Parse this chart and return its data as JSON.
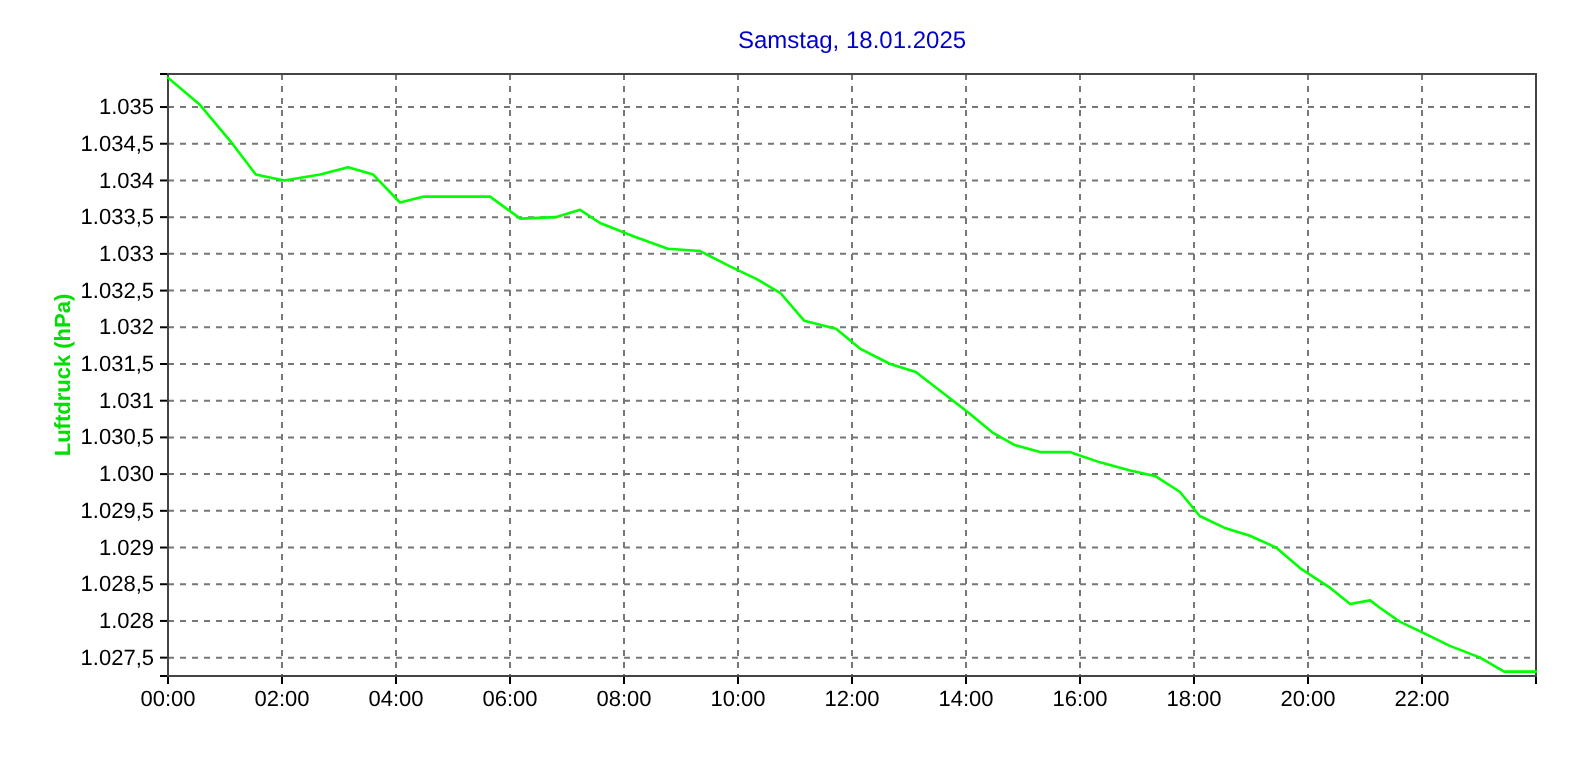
{
  "chart_data": {
    "type": "line",
    "title": "Samstag, 18.01.2025",
    "ylabel": "Luftdruck  (hPa)",
    "grid": true,
    "marker": "none",
    "line_style": "solid",
    "xlim": [
      0,
      24
    ],
    "xticks": [
      {
        "value": 0,
        "label": "00:00"
      },
      {
        "value": 2,
        "label": "02:00"
      },
      {
        "value": 4,
        "label": "04:00"
      },
      {
        "value": 6,
        "label": "06:00"
      },
      {
        "value": 8,
        "label": "08:00"
      },
      {
        "value": 10,
        "label": "10:00"
      },
      {
        "value": 12,
        "label": "12:00"
      },
      {
        "value": 14,
        "label": "14:00"
      },
      {
        "value": 16,
        "label": "16:00"
      },
      {
        "value": 18,
        "label": "18:00"
      },
      {
        "value": 20,
        "label": "20:00"
      },
      {
        "value": 22,
        "label": "22:00"
      }
    ],
    "ylim": [
      1027.25,
      1035.45
    ],
    "yticks": [
      {
        "value": 1027.5,
        "label": "1.027,5"
      },
      {
        "value": 1028,
        "label": "1.028"
      },
      {
        "value": 1028.5,
        "label": "1.028,5"
      },
      {
        "value": 1029,
        "label": "1.029"
      },
      {
        "value": 1029.5,
        "label": "1.029,5"
      },
      {
        "value": 1030,
        "label": "1.030"
      },
      {
        "value": 1030.5,
        "label": "1.030,5"
      },
      {
        "value": 1031,
        "label": "1.031"
      },
      {
        "value": 1031.5,
        "label": "1.031,5"
      },
      {
        "value": 1032,
        "label": "1.032"
      },
      {
        "value": 1032.5,
        "label": "1.032,5"
      },
      {
        "value": 1033,
        "label": "1.033"
      },
      {
        "value": 1033.5,
        "label": "1.033,5"
      },
      {
        "value": 1034,
        "label": "1.034"
      },
      {
        "value": 1034.5,
        "label": "1.034,5"
      },
      {
        "value": 1035,
        "label": "1.035"
      }
    ],
    "series": [
      {
        "color": "#00ff00",
        "x": [
          0,
          0.56,
          1.09,
          1.54,
          2.04,
          2.67,
          3.16,
          3.6,
          4.07,
          4.49,
          5.65,
          6.18,
          6.8,
          7.23,
          7.58,
          8.2,
          8.77,
          9.33,
          9.86,
          10.32,
          10.74,
          11.16,
          11.72,
          12.14,
          12.67,
          13.12,
          13.54,
          14.04,
          14.46,
          14.84,
          15.3,
          15.82,
          16.35,
          16.88,
          17.33,
          17.75,
          18.1,
          18.53,
          18.98,
          19.44,
          19.86,
          20.39,
          20.74,
          21.09,
          21.26,
          21.61,
          22.04,
          22.49,
          23.02,
          23.44,
          24
        ],
        "values": [
          1035.4,
          1035.03,
          1034.54,
          1034.08,
          1034.0,
          1034.08,
          1034.18,
          1034.08,
          1033.7,
          1033.78,
          1033.78,
          1033.48,
          1033.5,
          1033.6,
          1033.42,
          1033.23,
          1033.07,
          1033.04,
          1032.83,
          1032.66,
          1032.47,
          1032.09,
          1031.98,
          1031.71,
          1031.5,
          1031.39,
          1031.14,
          1030.84,
          1030.57,
          1030.4,
          1030.3,
          1030.3,
          1030.16,
          1030.05,
          1029.97,
          1029.76,
          1029.43,
          1029.27,
          1029.16,
          1029.0,
          1028.72,
          1028.45,
          1028.23,
          1028.28,
          1028.18,
          1027.99,
          1027.83,
          1027.66,
          1027.5,
          1027.31,
          1027.31
        ]
      }
    ]
  }
}
